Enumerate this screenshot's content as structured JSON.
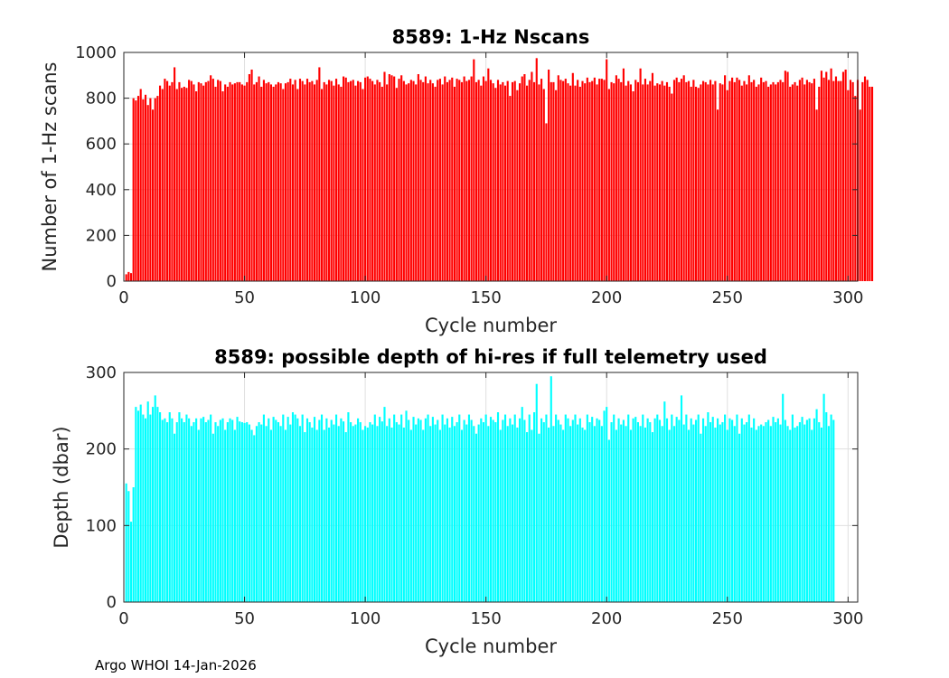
{
  "footer_text": "Argo WHOI 14-Jan-2026",
  "chart_data": [
    {
      "type": "bar",
      "title": "8589: 1-Hz Nscans",
      "xlabel": "Cycle number",
      "ylabel": "Number of 1-Hz scans",
      "xlim": [
        0,
        304
      ],
      "ylim": [
        0,
        1000
      ],
      "xticks": [
        0,
        50,
        100,
        150,
        200,
        250,
        300
      ],
      "yticks": [
        0,
        200,
        400,
        600,
        800,
        1000
      ],
      "grid": true,
      "color": "#ff0000",
      "x_start": 1,
      "values": [
        30,
        40,
        35,
        800,
        790,
        810,
        840,
        795,
        815,
        770,
        800,
        750,
        800,
        810,
        855,
        840,
        885,
        875,
        855,
        870,
        935,
        840,
        870,
        845,
        850,
        845,
        880,
        875,
        860,
        830,
        870,
        865,
        855,
        870,
        875,
        900,
        885,
        850,
        880,
        875,
        830,
        860,
        850,
        870,
        860,
        865,
        870,
        870,
        860,
        855,
        870,
        905,
        925,
        860,
        870,
        895,
        850,
        880,
        865,
        870,
        860,
        850,
        860,
        870,
        865,
        840,
        865,
        870,
        885,
        860,
        880,
        840,
        885,
        875,
        860,
        885,
        870,
        875,
        860,
        880,
        935,
        840,
        870,
        860,
        880,
        875,
        855,
        885,
        860,
        850,
        895,
        890,
        870,
        875,
        880,
        855,
        875,
        870,
        840,
        890,
        895,
        885,
        875,
        860,
        880,
        870,
        850,
        915,
        860,
        905,
        900,
        895,
        845,
        885,
        900,
        875,
        860,
        865,
        880,
        875,
        860,
        905,
        880,
        870,
        895,
        865,
        880,
        865,
        850,
        880,
        885,
        860,
        895,
        870,
        880,
        890,
        850,
        885,
        880,
        870,
        895,
        875,
        880,
        895,
        970,
        870,
        880,
        855,
        895,
        875,
        930,
        880,
        865,
        845,
        880,
        860,
        870,
        855,
        875,
        810,
        870,
        875,
        835,
        865,
        895,
        905,
        855,
        880,
        915,
        870,
        975,
        860,
        885,
        840,
        690,
        925,
        870,
        870,
        835,
        900,
        880,
        875,
        885,
        865,
        855,
        910,
        855,
        880,
        850,
        875,
        865,
        890,
        870,
        875,
        890,
        860,
        885,
        885,
        880,
        970,
        840,
        870,
        865,
        900,
        885,
        870,
        930,
        855,
        875,
        860,
        830,
        880,
        870,
        930,
        860,
        885,
        860,
        875,
        910,
        855,
        865,
        860,
        875,
        855,
        870,
        850,
        820,
        880,
        890,
        870,
        885,
        900,
        870,
        875,
        850,
        880,
        850,
        845,
        860,
        875,
        870,
        860,
        880,
        860,
        875,
        750,
        865,
        860,
        900,
        835,
        875,
        890,
        870,
        890,
        880,
        855,
        875,
        860,
        900,
        870,
        880,
        850,
        860,
        890,
        870,
        875,
        850,
        860,
        870,
        860,
        870,
        880,
        870,
        920,
        915,
        850,
        860,
        870,
        855,
        880,
        890,
        860,
        880,
        870,
        865,
        885,
        750,
        850,
        920,
        890,
        915,
        880,
        930,
        875,
        895,
        875,
        875,
        915,
        925,
        835,
        880,
        870,
        810,
        880,
        750,
        870,
        895,
        880,
        850,
        850
      ]
    },
    {
      "type": "bar",
      "title": "8589: possible depth of hi-res if full telemetry used",
      "xlabel": "Cycle number",
      "ylabel": "Depth (dbar)",
      "xlim": [
        0,
        304
      ],
      "ylim": [
        0,
        300
      ],
      "xticks": [
        0,
        50,
        100,
        150,
        200,
        250,
        300
      ],
      "yticks": [
        0,
        100,
        200,
        300
      ],
      "grid": true,
      "color": "#00ffff",
      "x_start": 1,
      "values": [
        155,
        145,
        105,
        150,
        255,
        250,
        258,
        245,
        240,
        262,
        245,
        255,
        270,
        255,
        248,
        238,
        240,
        235,
        248,
        240,
        220,
        235,
        248,
        240,
        235,
        245,
        240,
        230,
        235,
        240,
        225,
        240,
        242,
        235,
        238,
        245,
        220,
        235,
        230,
        238,
        240,
        225,
        235,
        240,
        238,
        225,
        242,
        236,
        235,
        234,
        235,
        232,
        225,
        218,
        230,
        235,
        232,
        245,
        230,
        240,
        225,
        242,
        238,
        235,
        230,
        245,
        225,
        242,
        232,
        248,
        245,
        240,
        230,
        245,
        222,
        240,
        235,
        228,
        242,
        225,
        238,
        245,
        225,
        240,
        228,
        238,
        232,
        245,
        230,
        240,
        236,
        222,
        248,
        235,
        230,
        232,
        240,
        235,
        225,
        230,
        228,
        235,
        232,
        245,
        230,
        242,
        236,
        255,
        230,
        240,
        228,
        245,
        235,
        232,
        245,
        228,
        250,
        238,
        225,
        242,
        232,
        240,
        238,
        225,
        240,
        245,
        230,
        242,
        232,
        238,
        225,
        245,
        232,
        240,
        228,
        242,
        230,
        235,
        245,
        225,
        238,
        232,
        245,
        238,
        230,
        220,
        232,
        240,
        235,
        245,
        230,
        242,
        238,
        235,
        248,
        225,
        238,
        245,
        230,
        240,
        232,
        245,
        228,
        240,
        255,
        238,
        222,
        245,
        225,
        248,
        285,
        220,
        240,
        235,
        245,
        228,
        295,
        230,
        245,
        238,
        232,
        225,
        245,
        240,
        230,
        238,
        245,
        232,
        240,
        228,
        225,
        245,
        235,
        242,
        230,
        240,
        238,
        230,
        250,
        255,
        212,
        235,
        245,
        225,
        240,
        232,
        238,
        230,
        245,
        225,
        240,
        242,
        235,
        230,
        245,
        228,
        240,
        235,
        222,
        240,
        245,
        238,
        230,
        262,
        240,
        225,
        245,
        230,
        242,
        238,
        270,
        232,
        245,
        225,
        240,
        232,
        238,
        245,
        220,
        240,
        230,
        248,
        235,
        242,
        228,
        240,
        232,
        235,
        245,
        225,
        240,
        238,
        230,
        245,
        220,
        240,
        232,
        235,
        245,
        228,
        240,
        225,
        230,
        232,
        230,
        235,
        238,
        230,
        242,
        235,
        240,
        232,
        272,
        238,
        230,
        225,
        245,
        228,
        230,
        235,
        242,
        232,
        238,
        240,
        225,
        240,
        252,
        235,
        228,
        272,
        248,
        230,
        245,
        238
      ]
    }
  ]
}
